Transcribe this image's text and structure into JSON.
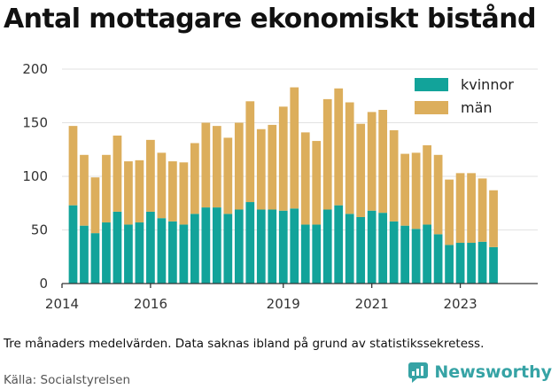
{
  "header": {
    "title": "Antal mottagare ekonomiskt bistånd"
  },
  "footer": {
    "caption": "Tre månaders medelvärden. Data saknas ibland på grund av statistikssekretess.",
    "source": "Källa: Socialstyrelsen",
    "brand": "Newsworthy"
  },
  "colors": {
    "kvinnor": "#12a39a",
    "man": "#dcae5c",
    "grid": "#e2e2e2",
    "axis": "#333333",
    "brand": "#36a3a5"
  },
  "chart_data": {
    "type": "bar",
    "stacked": true,
    "ylim": [
      0,
      200
    ],
    "xlim": [
      2014,
      2024.75
    ],
    "yticks": [
      0,
      50,
      100,
      150,
      200
    ],
    "xticks": [
      {
        "value": 2014,
        "label": "2014"
      },
      {
        "value": 2016,
        "label": "2016"
      },
      {
        "value": 2019,
        "label": "2019"
      },
      {
        "value": 2021,
        "label": "2021"
      },
      {
        "value": 2023,
        "label": "2023"
      }
    ],
    "grid": true,
    "legend_position": "top-right",
    "x": [
      2014.25,
      2014.5,
      2014.75,
      2015,
      2015.25,
      2015.5,
      2015.75,
      2016,
      2016.25,
      2016.5,
      2016.75,
      2017,
      2017.25,
      2017.5,
      2017.75,
      2018,
      2018.25,
      2018.5,
      2018.75,
      2019,
      2019.25,
      2019.5,
      2019.75,
      2020,
      2020.25,
      2020.5,
      2020.75,
      2021,
      2021.25,
      2021.5,
      2021.75,
      2022,
      2022.25,
      2022.5,
      2022.75,
      2023,
      2023.25,
      2023.5,
      2023.75,
      2024
    ],
    "series": [
      {
        "name": "kvinnor",
        "color": "#12a39a",
        "values": [
          73,
          54,
          47,
          57,
          67,
          55,
          57,
          67,
          61,
          58,
          55,
          65,
          71,
          71,
          65,
          69,
          76,
          69,
          69,
          68,
          70,
          55,
          55,
          69,
          73,
          65,
          62,
          68,
          66,
          58,
          54,
          51,
          55,
          46,
          36,
          38,
          38,
          39,
          34,
          0
        ]
      },
      {
        "name": "män",
        "color": "#dcae5c",
        "values": [
          74,
          66,
          52,
          63,
          71,
          59,
          58,
          67,
          61,
          56,
          58,
          66,
          79,
          76,
          71,
          81,
          94,
          75,
          79,
          97,
          113,
          86,
          78,
          103,
          109,
          104,
          87,
          92,
          96,
          85,
          67,
          71,
          74,
          74,
          61,
          65,
          65,
          59,
          53,
          0
        ]
      }
    ]
  }
}
